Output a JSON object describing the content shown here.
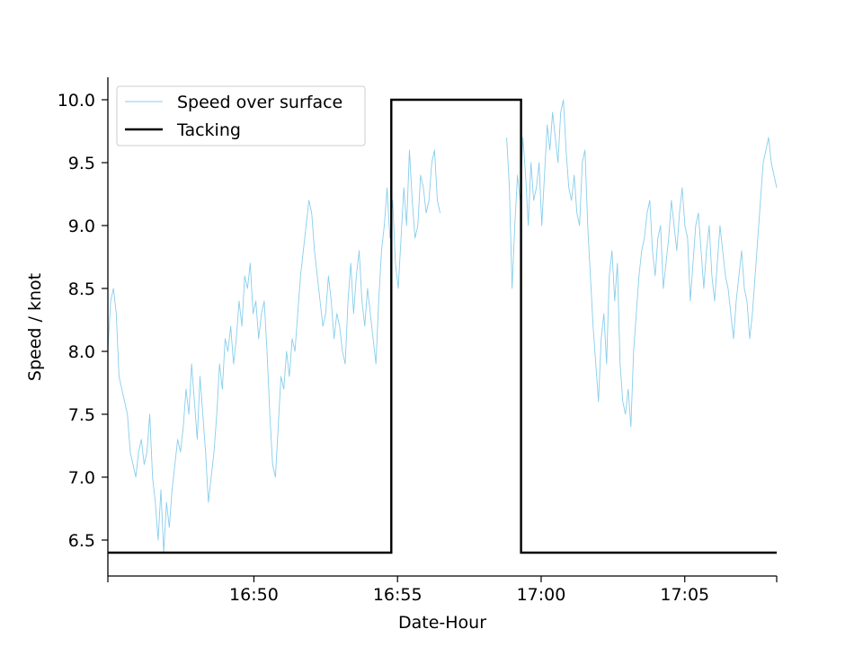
{
  "chart_data": {
    "type": "line",
    "title": "",
    "xlabel": "Date-Hour",
    "ylabel": "Speed / knot",
    "x_unit": "clock time HH:MM",
    "xlim": [
      "16:44:55",
      "17:08:12"
    ],
    "ylim": [
      6.3,
      10.2
    ],
    "x_ticks": [
      "16:50",
      "16:55",
      "17:00",
      "17:05"
    ],
    "y_ticks": [
      "6.5",
      "7.0",
      "7.5",
      "8.0",
      "8.5",
      "9.0",
      "9.5",
      "10.0"
    ],
    "grid": false,
    "legend_position": "top-left",
    "colors": {
      "speed": "#87ceeb",
      "tacking": "#000000"
    },
    "series": [
      {
        "name": "Speed over surface",
        "segments": [
          {
            "start": "16:44:55",
            "end": "16:56:29",
            "values": [
              8.0,
              8.4,
              8.5,
              8.3,
              7.8,
              7.7,
              7.6,
              7.5,
              7.2,
              7.1,
              7.0,
              7.2,
              7.3,
              7.1,
              7.2,
              7.5,
              7.0,
              6.8,
              6.5,
              6.9,
              6.4,
              6.8,
              6.6,
              6.9,
              7.1,
              7.3,
              7.2,
              7.4,
              7.7,
              7.5,
              7.9,
              7.6,
              7.3,
              7.8,
              7.5,
              7.2,
              6.8,
              7.0,
              7.2,
              7.5,
              7.9,
              7.7,
              8.1,
              8.0,
              8.2,
              7.9,
              8.1,
              8.4,
              8.2,
              8.6,
              8.5,
              8.7,
              8.3,
              8.4,
              8.1,
              8.3,
              8.4,
              8.0,
              7.5,
              7.1,
              7.0,
              7.4,
              7.8,
              7.7,
              8.0,
              7.8,
              8.1,
              8.0,
              8.3,
              8.6,
              8.8,
              9.0,
              9.2,
              9.1,
              8.8,
              8.6,
              8.4,
              8.2,
              8.3,
              8.6,
              8.4,
              8.1,
              8.3,
              8.2,
              8.0,
              7.9,
              8.4,
              8.7,
              8.3,
              8.6,
              8.8,
              8.4,
              8.2,
              8.5,
              8.3,
              8.1,
              7.9,
              8.4,
              8.8,
              9.0,
              9.3,
              8.9,
              9.2,
              8.7,
              8.5,
              8.9,
              9.3,
              9.0,
              9.6,
              9.2,
              8.9,
              9.0,
              9.4,
              9.3,
              9.1,
              9.2,
              9.5,
              9.6,
              9.2,
              9.1
            ]
          },
          {
            "start": "16:58:48",
            "end": "17:08:12",
            "values": [
              9.7,
              9.3,
              8.5,
              9.0,
              9.4,
              9.2,
              9.7,
              9.4,
              9.0,
              9.5,
              9.2,
              9.3,
              9.5,
              9.0,
              9.4,
              9.8,
              9.6,
              9.9,
              9.7,
              9.5,
              9.9,
              10.0,
              9.6,
              9.3,
              9.2,
              9.4,
              9.1,
              9.0,
              9.5,
              9.6,
              9.0,
              8.6,
              8.2,
              7.9,
              7.6,
              8.1,
              8.3,
              7.9,
              8.6,
              8.8,
              8.4,
              8.7,
              7.9,
              7.6,
              7.5,
              7.7,
              7.4,
              8.0,
              8.3,
              8.6,
              8.8,
              8.9,
              9.1,
              9.2,
              8.8,
              8.6,
              8.9,
              9.0,
              8.5,
              8.7,
              8.9,
              9.2,
              9.0,
              8.8,
              9.1,
              9.3,
              9.0,
              8.9,
              8.4,
              8.7,
              9.0,
              9.1,
              8.8,
              8.5,
              8.8,
              9.0,
              8.6,
              8.4,
              8.7,
              9.0,
              8.8,
              8.6,
              8.5,
              8.3,
              8.1,
              8.4,
              8.6,
              8.8,
              8.5,
              8.4,
              8.1,
              8.3,
              8.6,
              8.9,
              9.2,
              9.5,
              9.6,
              9.7,
              9.5,
              9.4,
              9.3
            ]
          }
        ]
      },
      {
        "name": "Tacking",
        "points": [
          {
            "x": "16:44:55",
            "y": 6.4
          },
          {
            "x": "16:54:47",
            "y": 6.4
          },
          {
            "x": "16:54:47",
            "y": 10.0
          },
          {
            "x": "16:59:18",
            "y": 10.0
          },
          {
            "x": "16:59:18",
            "y": 6.4
          },
          {
            "x": "17:08:12",
            "y": 6.4
          }
        ]
      }
    ]
  }
}
